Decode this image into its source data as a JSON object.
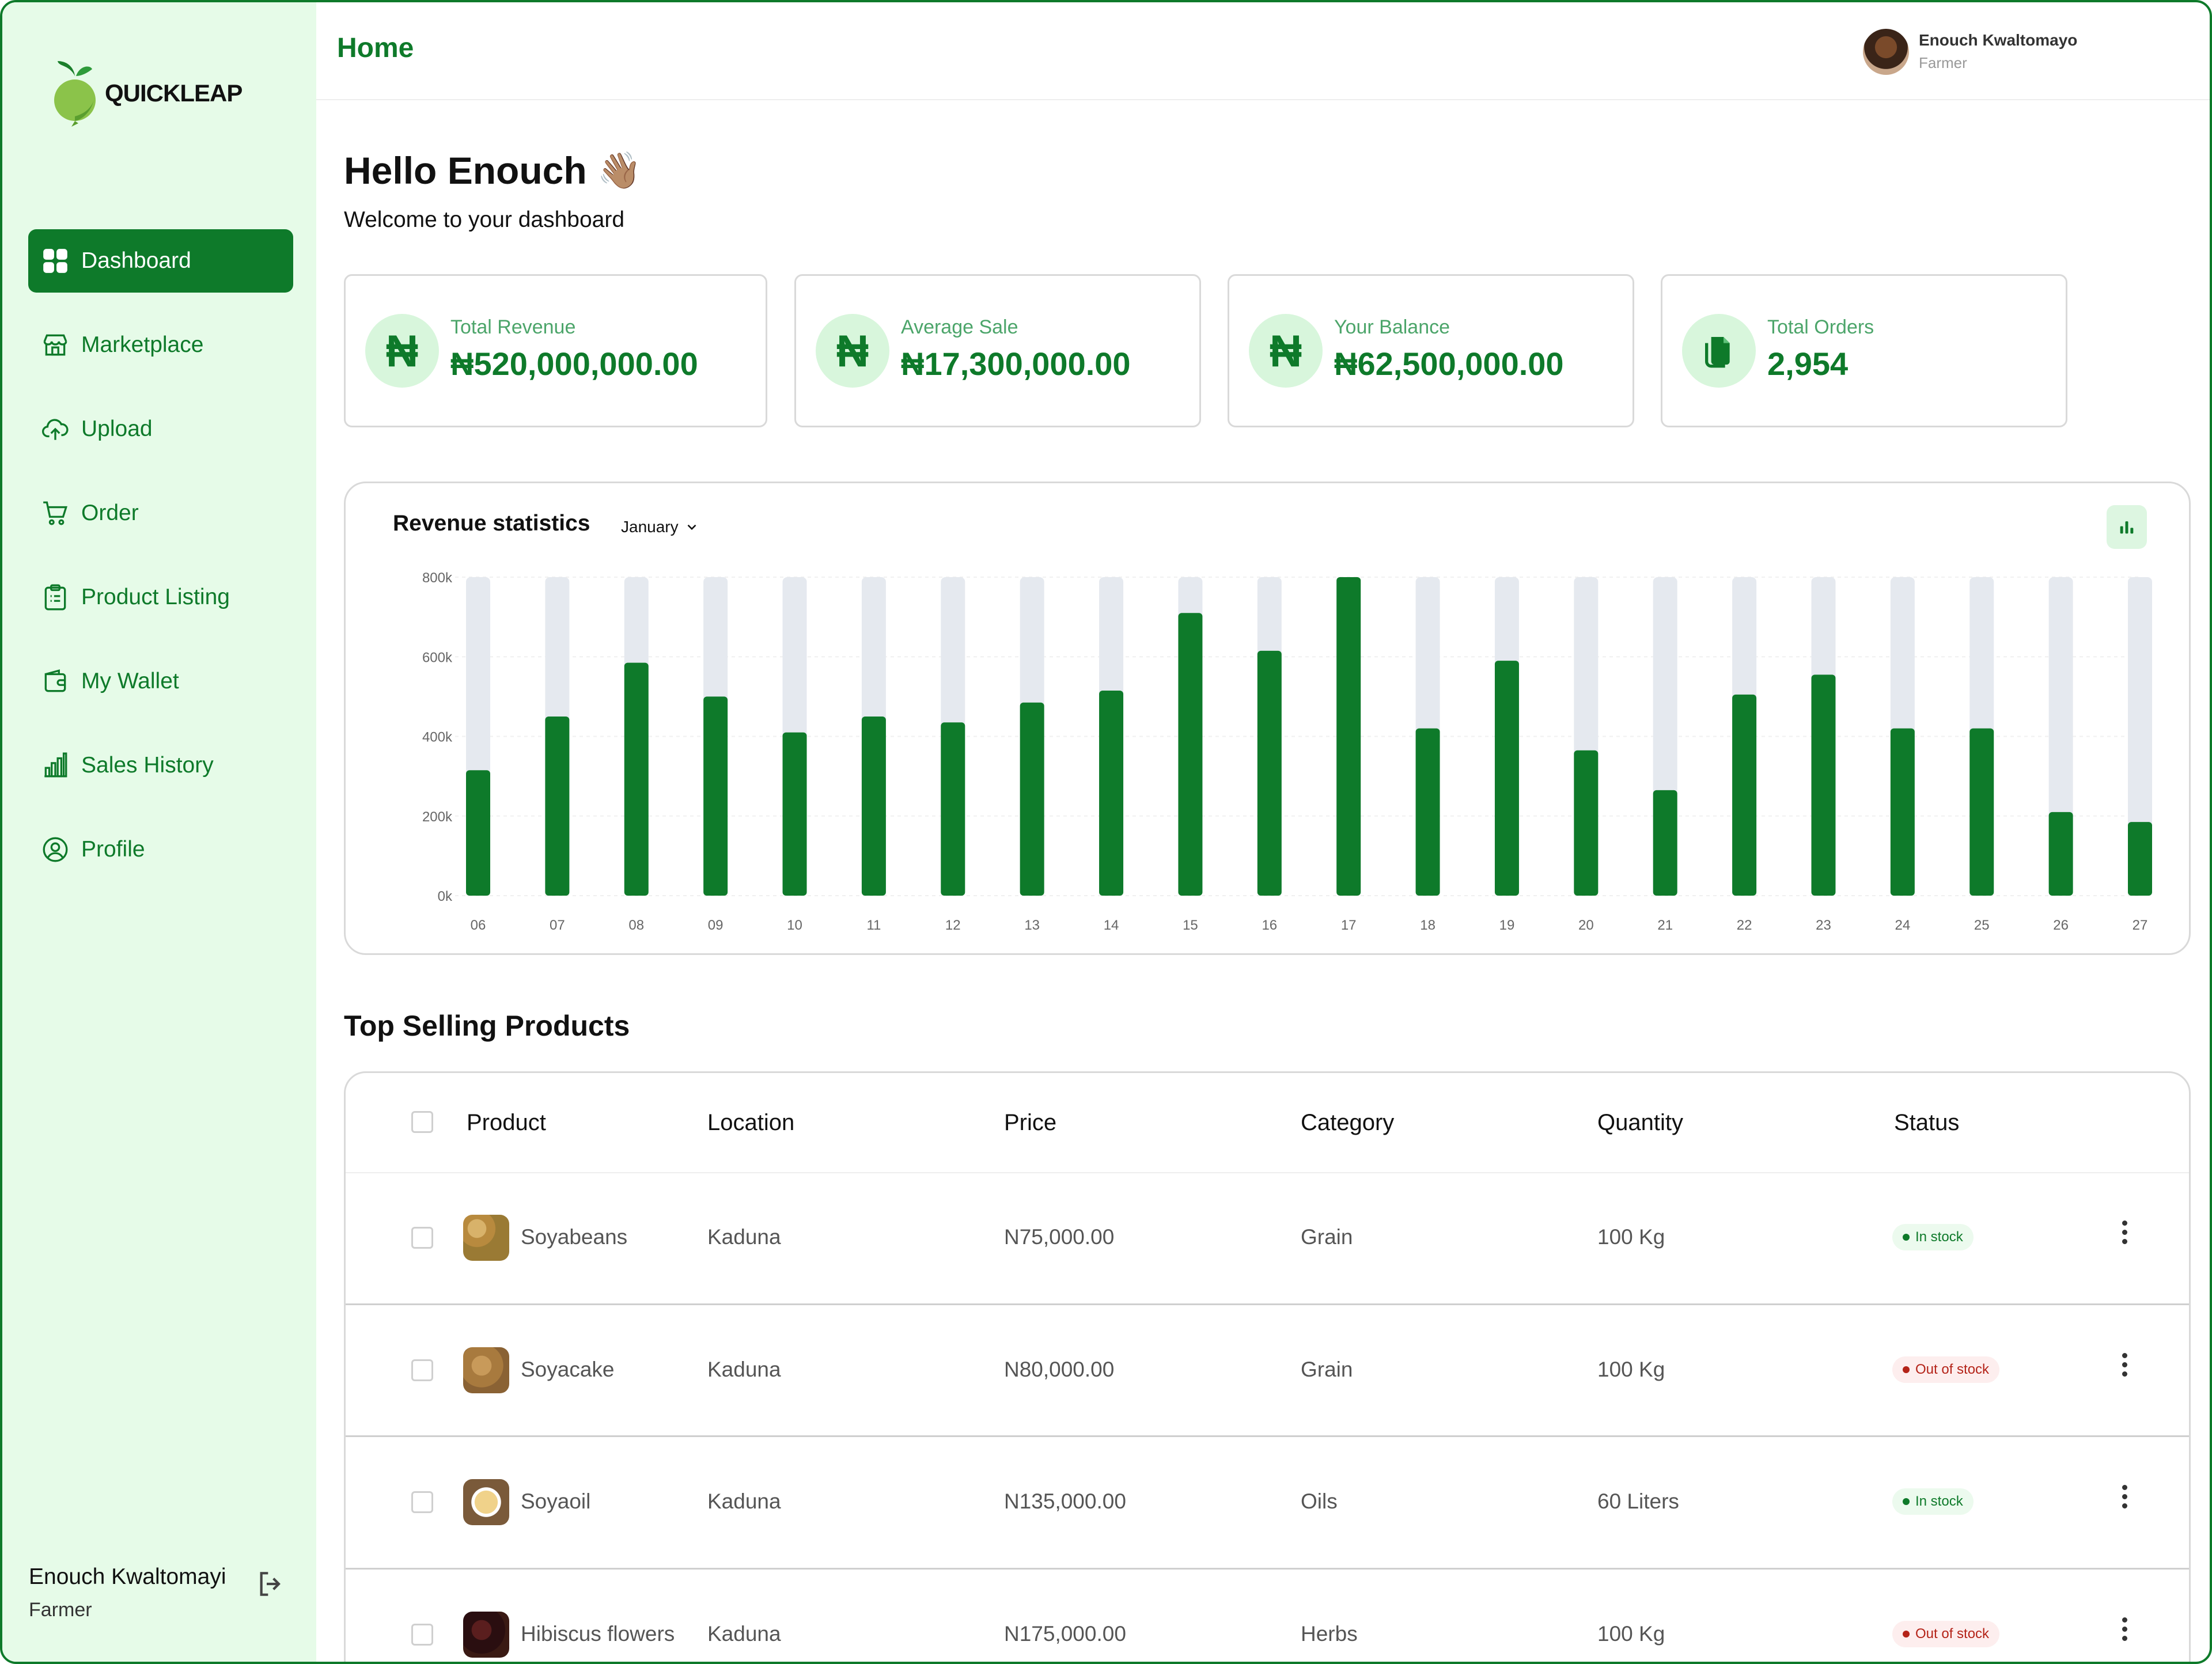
{
  "brand": {
    "name_part1": "QUICK",
    "name_part2": "LEAP"
  },
  "sidebar": {
    "items": [
      {
        "label": "Dashboard",
        "icon": "grid-icon",
        "active": true
      },
      {
        "label": "Marketplace",
        "icon": "store-icon"
      },
      {
        "label": "Upload",
        "icon": "cloud-upload-icon"
      },
      {
        "label": "Order",
        "icon": "cart-icon"
      },
      {
        "label": "Product Listing",
        "icon": "clipboard-list-icon"
      },
      {
        "label": "My Wallet",
        "icon": "wallet-icon"
      },
      {
        "label": "Sales History",
        "icon": "bar-chart-icon"
      },
      {
        "label": "Profile",
        "icon": "user-circle-icon"
      }
    ],
    "user": {
      "name": "Enouch Kwaltomayi",
      "role": "Farmer"
    }
  },
  "header": {
    "title": "Home",
    "user": {
      "name": "Enouch Kwaltomayo",
      "role": "Farmer"
    }
  },
  "greeting": {
    "title": "Hello Enouch",
    "emoji": "👋🏽",
    "subtitle": "Welcome to your dashboard"
  },
  "stats": [
    {
      "label": "Total Revenue",
      "value": "₦520,000,000.00",
      "icon": "naira-icon"
    },
    {
      "label": "Average Sale",
      "value": "₦17,300,000.00",
      "icon": "naira-icon"
    },
    {
      "label": "Your Balance",
      "value": "₦62,500,000.00",
      "icon": "naira-icon"
    },
    {
      "label": "Total Orders",
      "value": "2,954",
      "icon": "document-icon"
    }
  ],
  "chart_section": {
    "title": "Revenue statistics",
    "month": "January"
  },
  "chart_data": {
    "type": "bar",
    "categories": [
      "06",
      "07",
      "08",
      "09",
      "10",
      "11",
      "12",
      "13",
      "14",
      "15",
      "16",
      "17",
      "18",
      "19",
      "20",
      "21",
      "22",
      "23",
      "24",
      "25",
      "26",
      "27"
    ],
    "values": [
      315,
      450,
      585,
      500,
      410,
      450,
      435,
      485,
      515,
      710,
      615,
      800,
      420,
      590,
      365,
      265,
      505,
      555,
      420,
      420,
      210,
      185
    ],
    "ylim": [
      0,
      800
    ],
    "yticks": [
      "0k",
      "200k",
      "400k",
      "600k",
      "800k"
    ],
    "colors": {
      "bar": "#0e7a2a",
      "track": "#e5e9ef"
    }
  },
  "table": {
    "title": "Top Selling Products",
    "columns": [
      "Product",
      "Location",
      "Price",
      "Category",
      "Quantity",
      "Status"
    ],
    "rows": [
      {
        "product": "Soyabeans",
        "location": "Kaduna",
        "price": "N75,000.00",
        "category": "Grain",
        "quantity": "100 Kg",
        "status": "In stock"
      },
      {
        "product": "Soyacake",
        "location": "Kaduna",
        "price": "N80,000.00",
        "category": "Grain",
        "quantity": "100 Kg",
        "status": "Out of stock"
      },
      {
        "product": "Soyaoil",
        "location": "Kaduna",
        "price": "N135,000.00",
        "category": "Oils",
        "quantity": "60 Liters",
        "status": "In stock"
      },
      {
        "product": "Hibiscus flowers",
        "location": "Kaduna",
        "price": "N175,000.00",
        "category": "Herbs",
        "quantity": "100 Kg",
        "status": "Out of stock"
      }
    ]
  }
}
